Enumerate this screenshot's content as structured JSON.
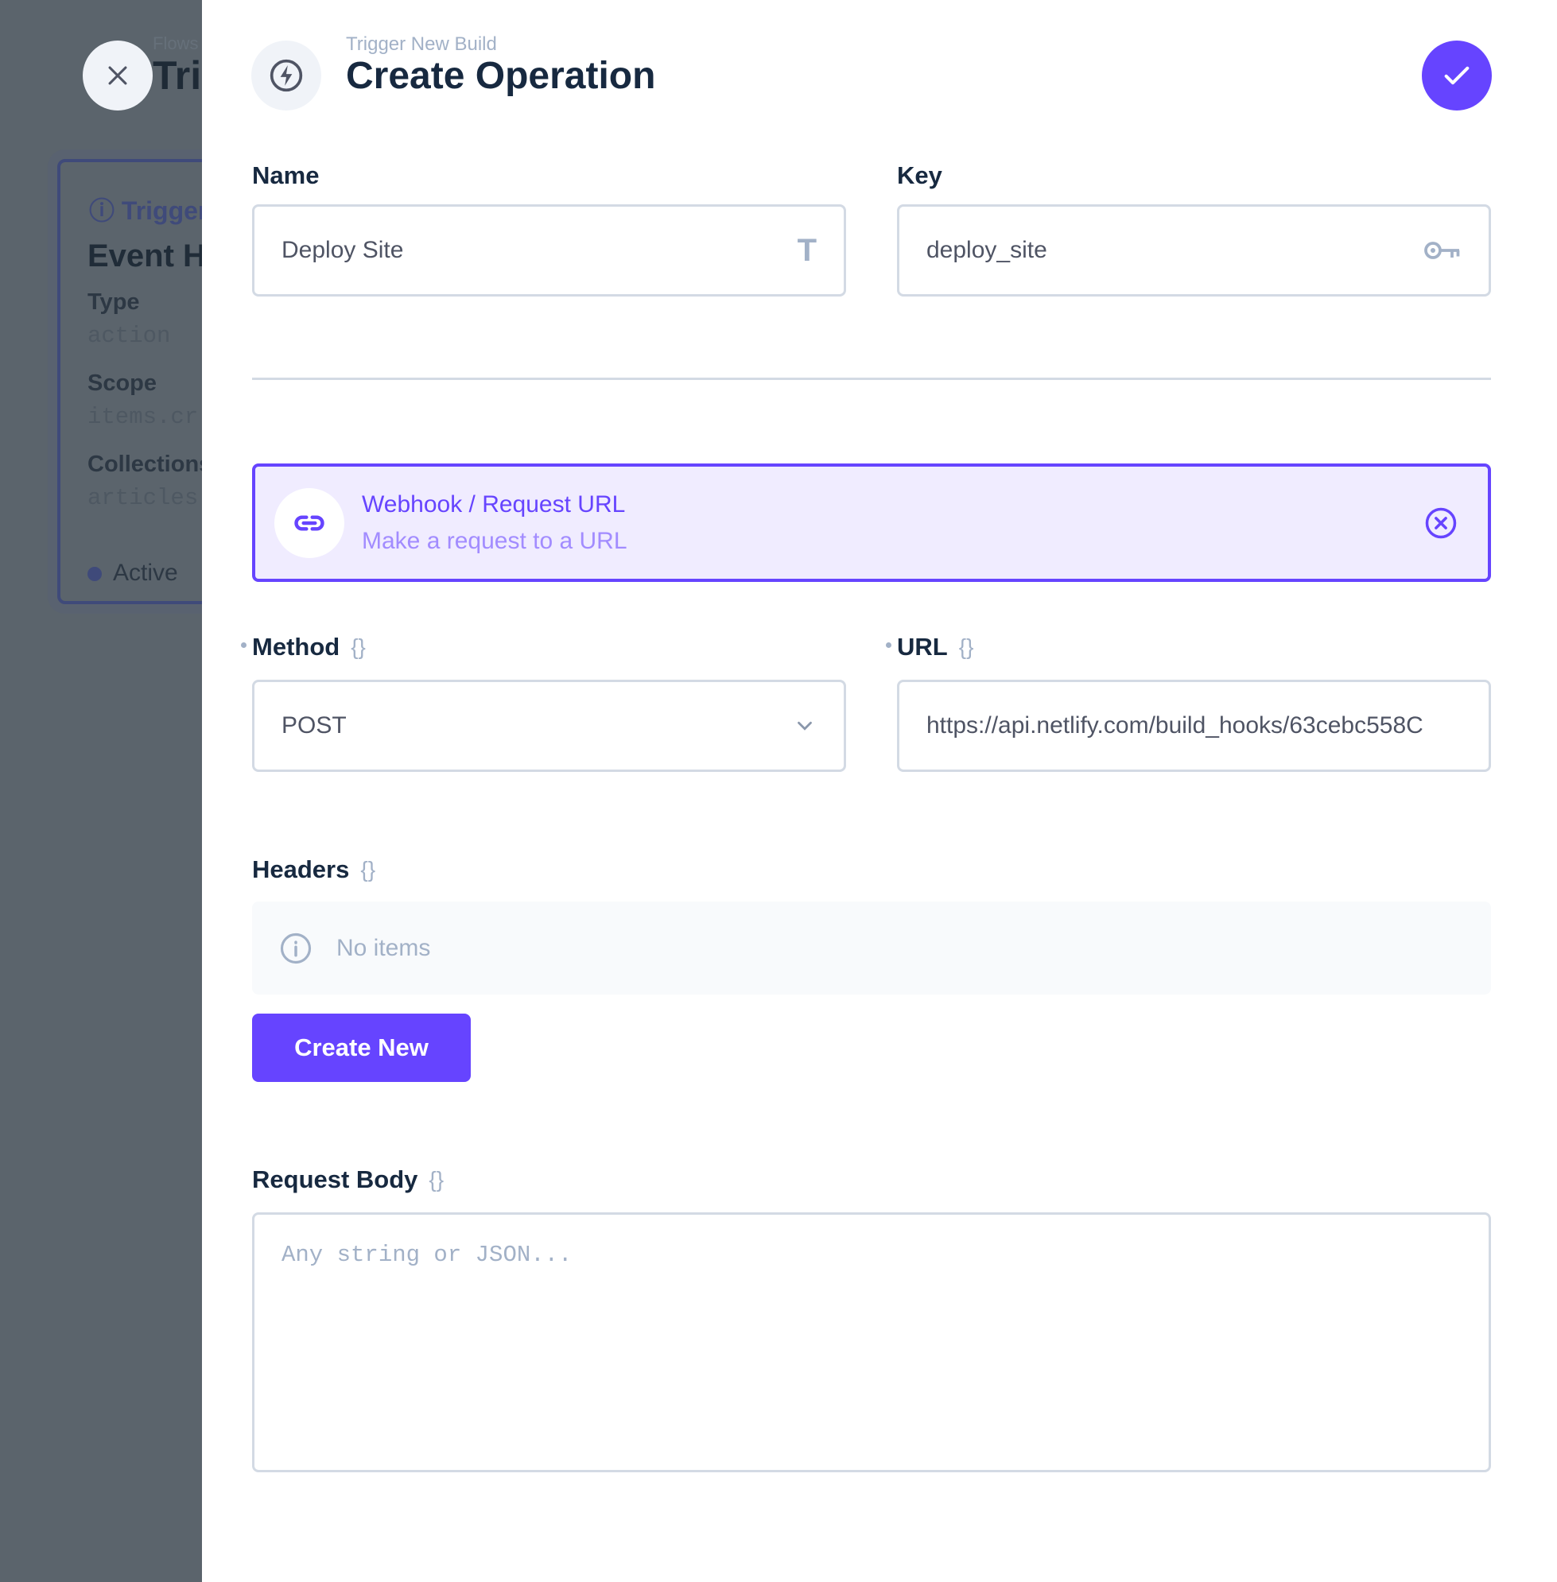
{
  "background": {
    "breadcrumb": "Flows",
    "title": "Tri",
    "card": {
      "header": "Trigger",
      "name": "Event H",
      "fields": [
        {
          "label": "Type",
          "value": "action"
        },
        {
          "label": "Scope",
          "value": "items.cr"
        },
        {
          "label": "Collections",
          "value": "articles"
        }
      ],
      "status": "Active"
    }
  },
  "drawer": {
    "subtitle": "Trigger New Build",
    "title": "Create Operation",
    "name_label": "Name",
    "name_value": "Deploy Site",
    "key_label": "Key",
    "key_value": "deploy_site",
    "operation": {
      "title": "Webhook / Request URL",
      "description": "Make a request to a URL"
    },
    "method_label": "Method",
    "method_value": "POST",
    "url_label": "URL",
    "url_value": "https://api.netlify.com/build_hooks/63cebc558C",
    "headers_label": "Headers",
    "no_items": "No items",
    "create_new": "Create New",
    "body_label": "Request Body",
    "body_placeholder": "Any string or JSON..."
  },
  "colors": {
    "accent": "#6644ff",
    "accent_bg": "#f0ecff",
    "overlay": "#5b646c"
  }
}
